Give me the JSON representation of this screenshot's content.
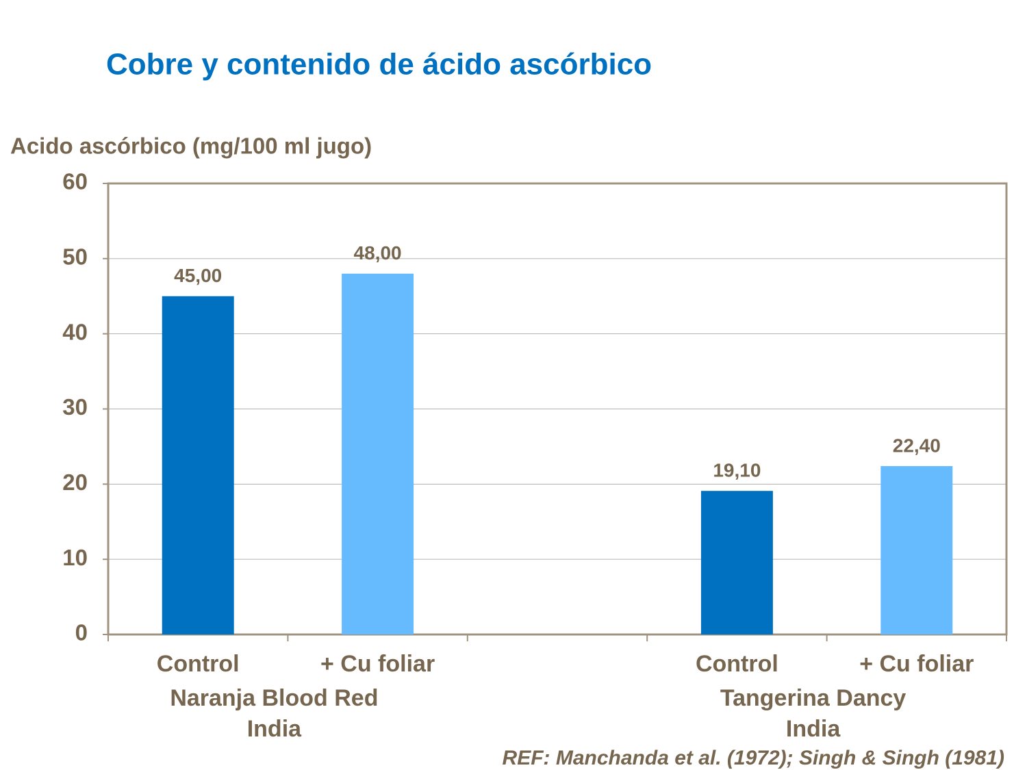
{
  "chart_data": {
    "type": "bar",
    "title": "Cobre y contenido de ácido ascórbico",
    "y_label": "Acido ascórbico (mg/100 ml jugo)",
    "categories": [
      "Control",
      "+ Cu foliar",
      null,
      "Control",
      "+ Cu foliar"
    ],
    "values": [
      45,
      48,
      null,
      19.1,
      22.4
    ],
    "value_labels": [
      "45,00",
      "48,00",
      null,
      "19,10",
      "22,40"
    ],
    "colors": [
      "#0070c0",
      "#66bbff",
      null,
      "#0070c0",
      "#66bbff"
    ],
    "groups": [
      {
        "lines": [
          "Naranja Blood Red",
          "India"
        ],
        "categories": [
          0,
          1
        ]
      },
      {
        "lines": [
          "Tangerina Dancy",
          "India"
        ],
        "categories": [
          3,
          4
        ]
      }
    ],
    "ylim": [
      0,
      60
    ],
    "yticks": [
      0,
      10,
      20,
      30,
      40,
      50,
      60
    ],
    "grid": true,
    "source": "REF: Manchanda et al. (1972); Singh & Singh (1981)"
  }
}
